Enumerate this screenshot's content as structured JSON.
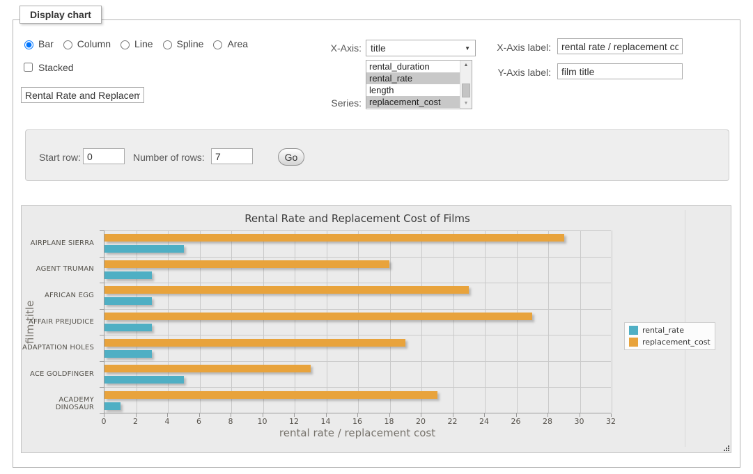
{
  "panel": {
    "legend": "Display chart",
    "chart_types": [
      {
        "label": "Bar",
        "selected": true
      },
      {
        "label": "Column",
        "selected": false
      },
      {
        "label": "Line",
        "selected": false
      },
      {
        "label": "Spline",
        "selected": false
      },
      {
        "label": "Area",
        "selected": false
      }
    ],
    "stacked": {
      "label": "Stacked",
      "checked": false
    },
    "title_input": {
      "value": "Rental Rate and Replacement Cost of Films"
    },
    "x_axis": {
      "label": "X-Axis:",
      "selected": "title"
    },
    "series_select": {
      "label": "Series:",
      "options": [
        {
          "label": "rental_duration",
          "selected": false
        },
        {
          "label": "rental_rate",
          "selected": true
        },
        {
          "label": "length",
          "selected": false
        },
        {
          "label": "replacement_cost",
          "selected": true
        }
      ]
    },
    "x_axis_label": {
      "label": "X-Axis label:",
      "value": "rental rate / replacement cost"
    },
    "y_axis_label": {
      "label": "Y-Axis label:",
      "value": "film title"
    }
  },
  "row_controls": {
    "start_row_label": "Start row:",
    "start_row_value": "0",
    "num_rows_label": "Number of rows:",
    "num_rows_value": "7",
    "go_label": "Go"
  },
  "icons": {
    "dropdown": "▼",
    "scroll_up": "▲",
    "scroll_down": "▼"
  },
  "colors": {
    "rental_rate": "#4FAFC4",
    "replacement_cost": "#E8A33C",
    "selected_option_bg": "#c8c8c8"
  },
  "chart_data": {
    "type": "bar",
    "orientation": "horizontal",
    "title": "Rental Rate and Replacement Cost of Films",
    "xlabel": "rental rate / replacement cost",
    "ylabel": "film title",
    "categories": [
      "AIRPLANE SIERRA",
      "AGENT TRUMAN",
      "AFRICAN EGG",
      "AFFAIR PREJUDICE",
      "ADAPTATION HOLES",
      "ACE GOLDFINGER",
      "ACADEMY DINOSAUR"
    ],
    "series": [
      {
        "name": "rental_rate",
        "color": "#4FAFC4",
        "values": [
          4.99,
          2.99,
          2.99,
          2.99,
          2.99,
          4.99,
          0.99
        ]
      },
      {
        "name": "replacement_cost",
        "color": "#E8A33C",
        "values": [
          28.99,
          17.99,
          22.99,
          26.99,
          18.99,
          12.99,
          20.99
        ]
      }
    ],
    "xlim": [
      0,
      32
    ],
    "xticks": [
      0,
      2,
      4,
      6,
      8,
      10,
      12,
      14,
      16,
      18,
      20,
      22,
      24,
      26,
      28,
      30,
      32
    ],
    "grid": true,
    "legend_position": "right"
  }
}
